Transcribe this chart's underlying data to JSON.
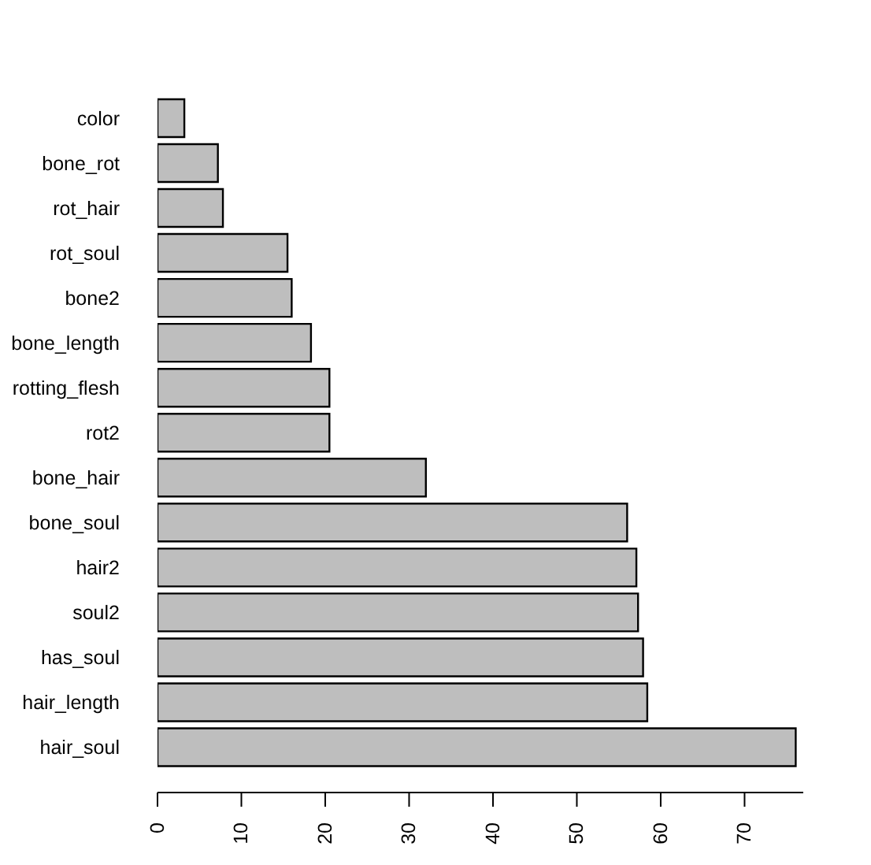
{
  "chart_data": {
    "type": "bar",
    "orientation": "horizontal",
    "categories": [
      "color",
      "bone_rot",
      "rot_hair",
      "rot_soul",
      "bone2",
      "bone_length",
      "rotting_flesh",
      "rot2",
      "bone_hair",
      "bone_soul",
      "hair2",
      "soul2",
      "has_soul",
      "hair_length",
      "hair_soul"
    ],
    "values": [
      3.2,
      7.2,
      7.8,
      15.5,
      16.0,
      18.3,
      20.5,
      20.5,
      32.0,
      56.0,
      57.1,
      57.3,
      57.9,
      58.4,
      76.1
    ],
    "color": "#bebebe",
    "xlim": [
      0,
      77
    ],
    "xticks": [
      0,
      10,
      20,
      30,
      40,
      50,
      60,
      70
    ]
  }
}
